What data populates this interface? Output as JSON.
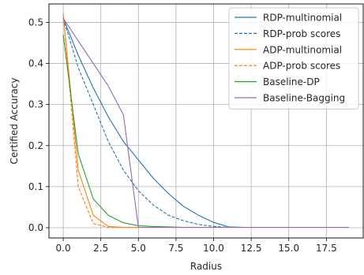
{
  "chart_data": {
    "type": "line",
    "title": "",
    "xlabel": "Radius",
    "ylabel": "Certified Accuracy",
    "xlim": [
      -0.95,
      19.95
    ],
    "ylim": [
      -0.025,
      0.545
    ],
    "xticks": [
      0.0,
      2.5,
      5.0,
      7.5,
      10.0,
      12.5,
      15.0,
      17.5
    ],
    "xtick_labels": [
      "0.0",
      "2.5",
      "5.0",
      "7.5",
      "10.0",
      "12.5",
      "15.0",
      "17.5"
    ],
    "yticks": [
      0.0,
      0.1,
      0.2,
      0.3,
      0.4,
      0.5
    ],
    "ytick_labels": [
      "0.0",
      "0.1",
      "0.2",
      "0.3",
      "0.4",
      "0.5"
    ],
    "grid": true,
    "legend_position": "top-right",
    "series": [
      {
        "name": "RDP-multinomial",
        "color": "#1f77b4",
        "dash": "solid",
        "x": [
          0,
          1,
          2,
          3,
          4,
          5,
          6,
          7,
          8,
          9,
          10,
          11,
          12,
          13,
          14,
          15,
          16,
          17,
          18,
          19
        ],
        "y": [
          0.51,
          0.42,
          0.34,
          0.27,
          0.21,
          0.165,
          0.12,
          0.083,
          0.052,
          0.03,
          0.013,
          0.002,
          0.001,
          0.001,
          0.001,
          0.001,
          0.001,
          0.001,
          0.001,
          0.001
        ]
      },
      {
        "name": "RDP-prob scores",
        "color": "#1f77b4",
        "dash": "dashed",
        "x": [
          0,
          1,
          2,
          3,
          4,
          5,
          6,
          7,
          8,
          9,
          10,
          11,
          12,
          13,
          14,
          15,
          16,
          17,
          18,
          19
        ],
        "y": [
          0.51,
          0.39,
          0.3,
          0.21,
          0.14,
          0.09,
          0.055,
          0.03,
          0.017,
          0.008,
          0.003,
          0.001,
          0.001,
          0.001,
          0.001,
          0.001,
          0.001,
          0.001,
          0.001,
          0.001
        ]
      },
      {
        "name": "ADP-multinomial",
        "color": "#ff7f0e",
        "dash": "solid",
        "x": [
          0,
          1,
          2,
          3,
          4,
          5,
          6,
          7,
          8,
          9,
          10,
          11,
          12,
          13,
          14,
          15,
          16,
          17,
          18,
          19
        ],
        "y": [
          0.52,
          0.14,
          0.03,
          0.003,
          0.001,
          0.001,
          0.001,
          0.001,
          0.001,
          0.001,
          0.001,
          0.001,
          0.001,
          0.001,
          0.001,
          0.001,
          0.001,
          0.001,
          0.001,
          0.001
        ]
      },
      {
        "name": "ADP-prob scores",
        "color": "#ff7f0e",
        "dash": "dashed",
        "x": [
          0,
          1,
          2,
          3,
          4,
          5,
          6,
          7,
          8,
          9,
          10,
          11,
          12,
          13,
          14,
          15,
          16,
          17,
          18,
          19
        ],
        "y": [
          0.52,
          0.1,
          0.01,
          0.001,
          0.001,
          0.001,
          0.001,
          0.001,
          0.001,
          0.001,
          0.001,
          0.001,
          0.001,
          0.001,
          0.001,
          0.001,
          0.001,
          0.001,
          0.001,
          0.001
        ]
      },
      {
        "name": "Baseline-DP",
        "color": "#2ca02c",
        "dash": "solid",
        "x": [
          0,
          1,
          2,
          3,
          4,
          5,
          6,
          7,
          8,
          9,
          10,
          11,
          12,
          13,
          14,
          15,
          16,
          17,
          18,
          19
        ],
        "y": [
          0.47,
          0.18,
          0.07,
          0.03,
          0.012,
          0.005,
          0.003,
          0.002,
          0.001,
          0.001,
          0.001,
          0.001,
          0.001,
          0.001,
          0.001,
          0.001,
          0.001,
          0.001,
          0.001,
          0.001
        ]
      },
      {
        "name": "Baseline-Bagging",
        "color": "#9467bd",
        "dash": "solid",
        "x": [
          0,
          1,
          2,
          3,
          4,
          5,
          6,
          7,
          8,
          9,
          10,
          11,
          12,
          13,
          14,
          15,
          16,
          17,
          18,
          19
        ],
        "y": [
          0.51,
          0.455,
          0.4,
          0.345,
          0.275,
          0.001,
          0.001,
          0.001,
          0.001,
          0.001,
          0.001,
          0.001,
          0.001,
          0.001,
          0.001,
          0.001,
          0.001,
          0.001,
          0.001,
          0.001
        ]
      }
    ]
  }
}
